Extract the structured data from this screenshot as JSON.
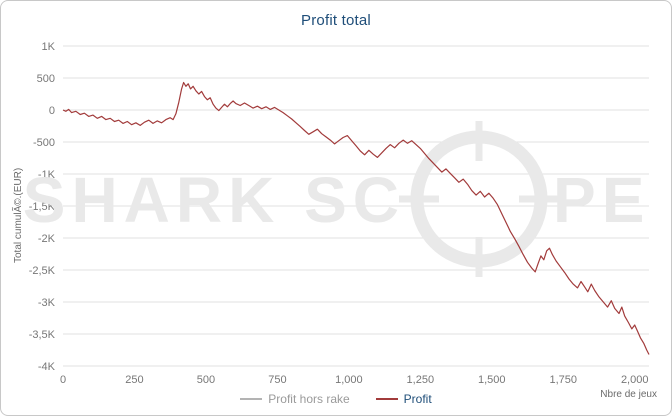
{
  "chart_data": {
    "type": "line",
    "title": "Profit total",
    "xlabel": "Nbre de jeux",
    "ylabel": "Total cumulÃ©.(EUR)",
    "xlim": [
      0,
      2050
    ],
    "ylim": [
      -4000,
      1000
    ],
    "grid": true,
    "legend_position": "bottom-center",
    "yticks": [
      {
        "value": 1000,
        "label": "1K"
      },
      {
        "value": 500,
        "label": "500"
      },
      {
        "value": 0,
        "label": "0"
      },
      {
        "value": -500,
        "label": "-500"
      },
      {
        "value": -1000,
        "label": "-1K"
      },
      {
        "value": -1500,
        "label": "-1,5K"
      },
      {
        "value": -2000,
        "label": "-2K"
      },
      {
        "value": -2500,
        "label": "-2,5K"
      },
      {
        "value": -3000,
        "label": "-3K"
      },
      {
        "value": -3500,
        "label": "-3,5K"
      },
      {
        "value": -4000,
        "label": "-4K"
      }
    ],
    "xticks": [
      {
        "value": 0,
        "label": "0"
      },
      {
        "value": 250,
        "label": "250"
      },
      {
        "value": 500,
        "label": "500"
      },
      {
        "value": 750,
        "label": "750"
      },
      {
        "value": 1000,
        "label": "1,000"
      },
      {
        "value": 1250,
        "label": "1,250"
      },
      {
        "value": 1500,
        "label": "1,500"
      },
      {
        "value": 1750,
        "label": "1,750"
      },
      {
        "value": 2000,
        "label": "2,000"
      }
    ],
    "series": [
      {
        "name": "Profit",
        "color": "#a23b3b",
        "points": [
          [
            0,
            0
          ],
          [
            10,
            -20
          ],
          [
            20,
            10
          ],
          [
            30,
            -40
          ],
          [
            45,
            -20
          ],
          [
            60,
            -70
          ],
          [
            75,
            -50
          ],
          [
            90,
            -100
          ],
          [
            105,
            -80
          ],
          [
            120,
            -130
          ],
          [
            135,
            -100
          ],
          [
            150,
            -150
          ],
          [
            165,
            -130
          ],
          [
            180,
            -180
          ],
          [
            195,
            -160
          ],
          [
            210,
            -210
          ],
          [
            225,
            -180
          ],
          [
            240,
            -230
          ],
          [
            255,
            -200
          ],
          [
            270,
            -240
          ],
          [
            285,
            -190
          ],
          [
            300,
            -160
          ],
          [
            315,
            -210
          ],
          [
            330,
            -170
          ],
          [
            345,
            -200
          ],
          [
            360,
            -150
          ],
          [
            375,
            -120
          ],
          [
            385,
            -150
          ],
          [
            395,
            -60
          ],
          [
            405,
            120
          ],
          [
            415,
            330
          ],
          [
            422,
            430
          ],
          [
            430,
            370
          ],
          [
            438,
            410
          ],
          [
            446,
            330
          ],
          [
            455,
            370
          ],
          [
            465,
            300
          ],
          [
            475,
            250
          ],
          [
            485,
            290
          ],
          [
            495,
            210
          ],
          [
            505,
            160
          ],
          [
            515,
            190
          ],
          [
            525,
            90
          ],
          [
            535,
            30
          ],
          [
            545,
            -10
          ],
          [
            555,
            40
          ],
          [
            565,
            90
          ],
          [
            575,
            50
          ],
          [
            585,
            100
          ],
          [
            595,
            140
          ],
          [
            605,
            100
          ],
          [
            620,
            70
          ],
          [
            635,
            110
          ],
          [
            650,
            70
          ],
          [
            665,
            30
          ],
          [
            680,
            60
          ],
          [
            695,
            20
          ],
          [
            710,
            50
          ],
          [
            725,
            10
          ],
          [
            740,
            40
          ],
          [
            755,
            0
          ],
          [
            770,
            -40
          ],
          [
            785,
            -90
          ],
          [
            800,
            -140
          ],
          [
            815,
            -200
          ],
          [
            830,
            -260
          ],
          [
            845,
            -320
          ],
          [
            860,
            -380
          ],
          [
            875,
            -340
          ],
          [
            890,
            -300
          ],
          [
            905,
            -370
          ],
          [
            920,
            -420
          ],
          [
            935,
            -470
          ],
          [
            950,
            -530
          ],
          [
            965,
            -480
          ],
          [
            980,
            -430
          ],
          [
            995,
            -400
          ],
          [
            1010,
            -480
          ],
          [
            1025,
            -560
          ],
          [
            1040,
            -640
          ],
          [
            1055,
            -700
          ],
          [
            1070,
            -630
          ],
          [
            1085,
            -690
          ],
          [
            1100,
            -740
          ],
          [
            1115,
            -670
          ],
          [
            1130,
            -600
          ],
          [
            1145,
            -540
          ],
          [
            1160,
            -590
          ],
          [
            1175,
            -520
          ],
          [
            1190,
            -470
          ],
          [
            1205,
            -520
          ],
          [
            1220,
            -480
          ],
          [
            1235,
            -540
          ],
          [
            1250,
            -600
          ],
          [
            1265,
            -680
          ],
          [
            1280,
            -760
          ],
          [
            1295,
            -830
          ],
          [
            1310,
            -900
          ],
          [
            1325,
            -970
          ],
          [
            1340,
            -920
          ],
          [
            1355,
            -990
          ],
          [
            1370,
            -1060
          ],
          [
            1385,
            -1130
          ],
          [
            1400,
            -1080
          ],
          [
            1415,
            -1160
          ],
          [
            1430,
            -1260
          ],
          [
            1445,
            -1330
          ],
          [
            1460,
            -1270
          ],
          [
            1475,
            -1360
          ],
          [
            1490,
            -1300
          ],
          [
            1505,
            -1380
          ],
          [
            1520,
            -1480
          ],
          [
            1535,
            -1620
          ],
          [
            1550,
            -1760
          ],
          [
            1565,
            -1900
          ],
          [
            1580,
            -2010
          ],
          [
            1595,
            -2130
          ],
          [
            1610,
            -2260
          ],
          [
            1625,
            -2380
          ],
          [
            1640,
            -2470
          ],
          [
            1652,
            -2530
          ],
          [
            1662,
            -2400
          ],
          [
            1672,
            -2280
          ],
          [
            1682,
            -2340
          ],
          [
            1692,
            -2200
          ],
          [
            1702,
            -2160
          ],
          [
            1712,
            -2260
          ],
          [
            1725,
            -2360
          ],
          [
            1740,
            -2450
          ],
          [
            1755,
            -2540
          ],
          [
            1770,
            -2640
          ],
          [
            1785,
            -2720
          ],
          [
            1800,
            -2780
          ],
          [
            1812,
            -2680
          ],
          [
            1824,
            -2760
          ],
          [
            1836,
            -2840
          ],
          [
            1848,
            -2720
          ],
          [
            1860,
            -2820
          ],
          [
            1875,
            -2920
          ],
          [
            1890,
            -3000
          ],
          [
            1905,
            -3080
          ],
          [
            1918,
            -2980
          ],
          [
            1930,
            -3100
          ],
          [
            1945,
            -3180
          ],
          [
            1955,
            -3080
          ],
          [
            1965,
            -3220
          ],
          [
            1978,
            -3320
          ],
          [
            1990,
            -3420
          ],
          [
            2000,
            -3360
          ],
          [
            2010,
            -3460
          ],
          [
            2020,
            -3560
          ],
          [
            2032,
            -3650
          ],
          [
            2042,
            -3750
          ],
          [
            2050,
            -3820
          ]
        ]
      }
    ]
  },
  "legend": {
    "items": [
      {
        "label": "Profit hors rake",
        "color": "#b3b3b3",
        "label_color": "#9a9a9a"
      },
      {
        "label": "Profit",
        "color": "#a23b3b",
        "label_color": "#1f4e79"
      }
    ]
  },
  "watermark": {
    "left": "SHARK SC",
    "right": "PE",
    "color": "#e9e9e9"
  },
  "colors": {
    "title": "#1f4e79",
    "grid": "#e2e2e2",
    "tick_text": "#777777",
    "line": "#a23b3b"
  }
}
